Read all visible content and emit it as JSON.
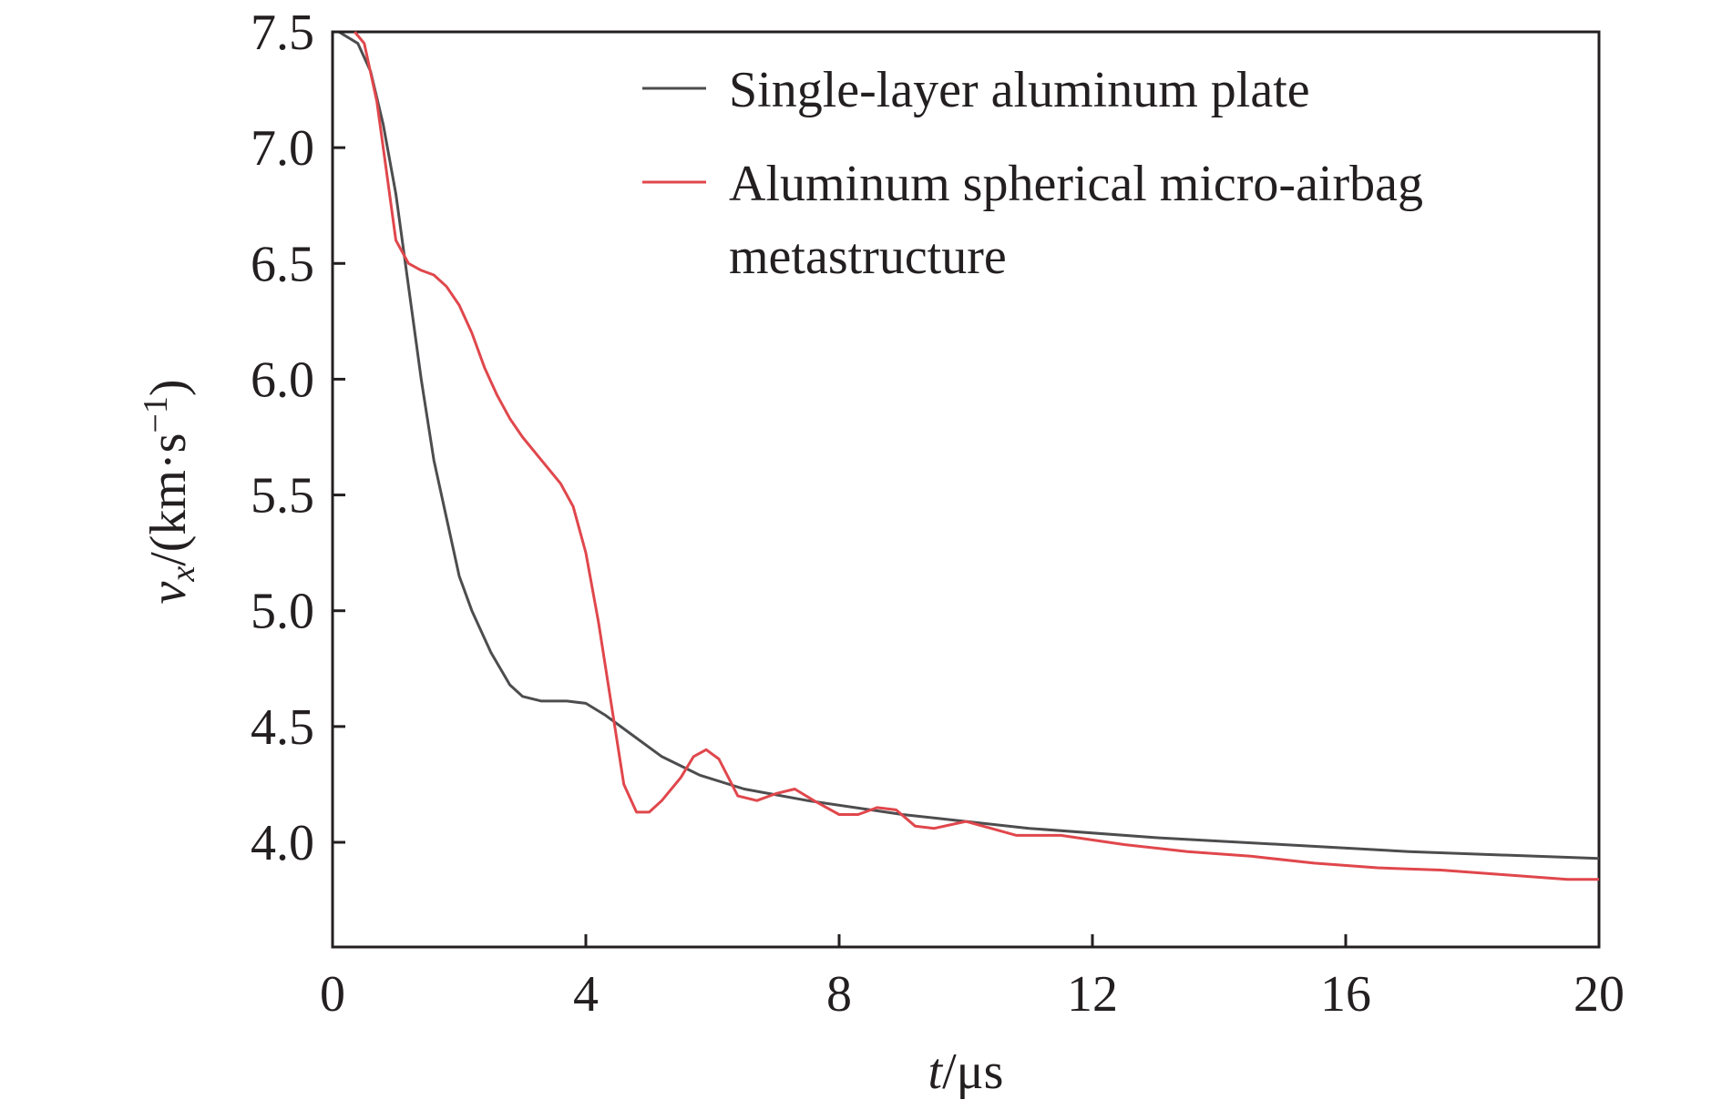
{
  "chart_data": {
    "type": "line",
    "xlim": [
      0,
      20
    ],
    "ylim": [
      3.6,
      7.5
    ],
    "x_ticks": [
      "0",
      "4",
      "8",
      "12",
      "16",
      "20"
    ],
    "y_ticks": [
      "4.0",
      "4.5",
      "5.0",
      "5.5",
      "6.0",
      "6.5",
      "7.0",
      "7.5"
    ],
    "xlabel": {
      "var": "t",
      "unit": "μs"
    },
    "ylabel": {
      "var": "v",
      "sub": "x",
      "unit_pre": "(km·s",
      "sup": "−1",
      "unit_post": ")"
    },
    "legend_position": "top-right",
    "grid": false,
    "series": [
      {
        "name": "Single-layer aluminum plate",
        "color": "#4d4d4f",
        "points": [
          [
            0.1,
            7.5
          ],
          [
            0.4,
            7.45
          ],
          [
            0.6,
            7.33
          ],
          [
            0.8,
            7.1
          ],
          [
            1.0,
            6.8
          ],
          [
            1.2,
            6.4
          ],
          [
            1.4,
            6.0
          ],
          [
            1.6,
            5.65
          ],
          [
            1.8,
            5.4
          ],
          [
            2.0,
            5.15
          ],
          [
            2.2,
            5.0
          ],
          [
            2.5,
            4.82
          ],
          [
            2.8,
            4.68
          ],
          [
            3.0,
            4.63
          ],
          [
            3.3,
            4.61
          ],
          [
            3.7,
            4.61
          ],
          [
            4.0,
            4.6
          ],
          [
            4.3,
            4.55
          ],
          [
            4.7,
            4.47
          ],
          [
            5.2,
            4.37
          ],
          [
            5.8,
            4.29
          ],
          [
            6.5,
            4.23
          ],
          [
            7.5,
            4.18
          ],
          [
            9.0,
            4.12
          ],
          [
            11.0,
            4.06
          ],
          [
            13.0,
            4.02
          ],
          [
            15.0,
            3.99
          ],
          [
            17.0,
            3.96
          ],
          [
            19.0,
            3.94
          ],
          [
            20.0,
            3.93
          ]
        ]
      },
      {
        "name": "Aluminum spherical micro-airbag metastructure",
        "color": "#e0474c",
        "points": [
          [
            0.35,
            7.5
          ],
          [
            0.5,
            7.45
          ],
          [
            0.7,
            7.2
          ],
          [
            0.85,
            6.9
          ],
          [
            1.0,
            6.6
          ],
          [
            1.2,
            6.5
          ],
          [
            1.4,
            6.47
          ],
          [
            1.6,
            6.45
          ],
          [
            1.8,
            6.4
          ],
          [
            2.0,
            6.32
          ],
          [
            2.2,
            6.2
          ],
          [
            2.4,
            6.05
          ],
          [
            2.6,
            5.93
          ],
          [
            2.8,
            5.83
          ],
          [
            3.0,
            5.75
          ],
          [
            3.3,
            5.65
          ],
          [
            3.6,
            5.55
          ],
          [
            3.8,
            5.45
          ],
          [
            4.0,
            5.25
          ],
          [
            4.2,
            4.95
          ],
          [
            4.4,
            4.6
          ],
          [
            4.6,
            4.25
          ],
          [
            4.8,
            4.13
          ],
          [
            5.0,
            4.13
          ],
          [
            5.2,
            4.18
          ],
          [
            5.5,
            4.28
          ],
          [
            5.7,
            4.37
          ],
          [
            5.9,
            4.4
          ],
          [
            6.1,
            4.36
          ],
          [
            6.4,
            4.2
          ],
          [
            6.7,
            4.18
          ],
          [
            7.0,
            4.21
          ],
          [
            7.3,
            4.23
          ],
          [
            7.6,
            4.18
          ],
          [
            8.0,
            4.12
          ],
          [
            8.3,
            4.12
          ],
          [
            8.6,
            4.15
          ],
          [
            8.9,
            4.14
          ],
          [
            9.2,
            4.07
          ],
          [
            9.5,
            4.06
          ],
          [
            10.0,
            4.09
          ],
          [
            10.4,
            4.06
          ],
          [
            10.8,
            4.03
          ],
          [
            11.5,
            4.03
          ],
          [
            12.5,
            3.99
          ],
          [
            13.5,
            3.96
          ],
          [
            14.5,
            3.94
          ],
          [
            15.5,
            3.91
          ],
          [
            16.5,
            3.89
          ],
          [
            17.5,
            3.88
          ],
          [
            18.5,
            3.86
          ],
          [
            19.5,
            3.84
          ],
          [
            20.0,
            3.84
          ]
        ]
      }
    ]
  },
  "legend": {
    "items": [
      {
        "lines": [
          "Single-layer aluminum plate"
        ]
      },
      {
        "lines": [
          "Aluminum spherical micro-airbag",
          "metastructure"
        ]
      }
    ]
  }
}
